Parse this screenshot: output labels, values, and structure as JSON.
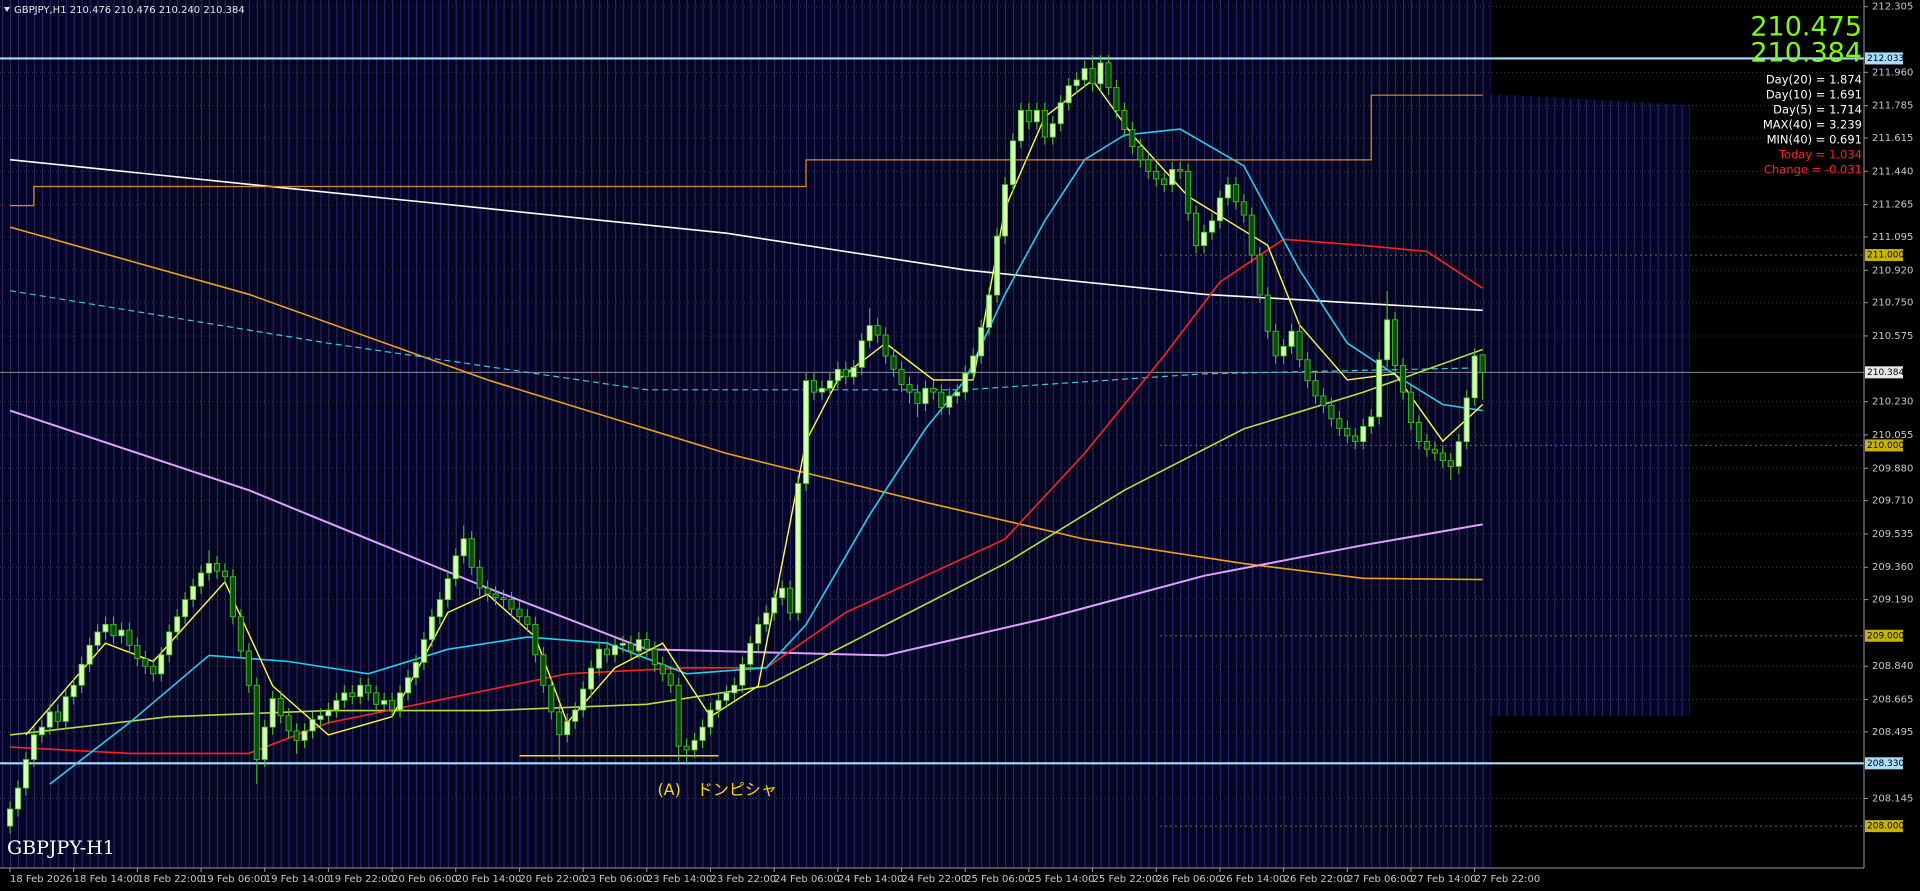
{
  "chart_data": {
    "type": "candlestick",
    "header": "GBPJPY,H1  210.476 210.476 210.240 210.384",
    "watermark": "GBPJPY-H1",
    "bid_ask": [
      210.475,
      210.384
    ],
    "bid_ask_color": "#7cfc00",
    "stats": [
      {
        "text": "Day(20) = 1.874",
        "color": "#ffffff"
      },
      {
        "text": "Day(10) = 1.691",
        "color": "#ffffff"
      },
      {
        "text": "Day(5) = 1.714",
        "color": "#ffffff"
      },
      {
        "text": "MAX(40) = 3.239",
        "color": "#ffffff"
      },
      {
        "text": "MIN(40) = 0.691",
        "color": "#ffffff"
      },
      {
        "text": "Today = 1.034",
        "color": "#ff2020"
      },
      {
        "text": "Change = -0.031",
        "color": "#ff2020"
      }
    ],
    "annotation": {
      "text": "(A)　ドンピシャ",
      "value": 208.37,
      "x": [
        64,
        89
      ],
      "color": "#ffd700"
    },
    "up_color": "#d9ffb3",
    "down_color": "#0b4d0b",
    "wick_color": "#44cc22",
    "ylim": [
      207.78,
      212.34
    ],
    "grid": true,
    "yticks": [
      212.305,
      {
        "value": 211.96,
        "label": "211.960"
      },
      211.785,
      211.615,
      {
        "value": 211.44,
        "label": "211.440"
      },
      211.265,
      211.095,
      {
        "value": 210.92,
        "label": "210.920"
      },
      {
        "value": 210.75,
        "label": "210.750"
      },
      210.575,
      {
        "value": 210.23,
        "label": "210.230"
      },
      210.055,
      {
        "value": 209.88,
        "label": "209.880"
      },
      {
        "value": 209.71,
        "label": "209.710"
      },
      209.535,
      {
        "value": 209.36,
        "label": "209.360"
      },
      {
        "value": 209.19,
        "label": "209.190"
      },
      {
        "value": 208.84,
        "label": "208.840"
      },
      208.665,
      208.495,
      208.145
    ],
    "xticks": [
      {
        "value": 0,
        "label": "18 Feb 2026"
      },
      {
        "value": 8,
        "label": "18 Feb 14:00"
      },
      {
        "value": 16,
        "label": "18 Feb 22:00"
      },
      {
        "value": 24,
        "label": "19 Feb 06:00"
      },
      {
        "value": 32,
        "label": "19 Feb 14:00"
      },
      {
        "value": 40,
        "label": "19 Feb 22:00"
      },
      {
        "value": 48,
        "label": "20 Feb 06:00"
      },
      {
        "value": 56,
        "label": "20 Feb 14:00"
      },
      {
        "value": 64,
        "label": "20 Feb 22:00"
      },
      {
        "value": 72,
        "label": "23 Feb 06:00"
      },
      {
        "value": 80,
        "label": "23 Feb 14:00"
      },
      {
        "value": 88,
        "label": "23 Feb 22:00"
      },
      {
        "value": 96,
        "label": "24 Feb 06:00"
      },
      {
        "value": 104,
        "label": "24 Feb 14:00"
      },
      {
        "value": 112,
        "label": "24 Feb 22:00"
      },
      {
        "value": 120,
        "label": "25 Feb 06:00"
      },
      {
        "value": 128,
        "label": "25 Feb 14:00"
      },
      {
        "value": 136,
        "label": "25 Feb 22:00"
      },
      {
        "value": 144,
        "label": "26 Feb 06:00"
      },
      {
        "value": 152,
        "label": "26 Feb 14:00"
      },
      {
        "value": 160,
        "label": "26 Feb 22:00"
      },
      {
        "value": 168,
        "label": "27 Feb 06:00"
      },
      {
        "value": 176,
        "label": "27 Feb 14:00"
      },
      {
        "value": 184,
        "label": "27 Feb 22:00"
      }
    ],
    "levels": [
      {
        "value": 212.033,
        "color": "#a8dcff"
      },
      {
        "value": 208.33,
        "label": "208.330",
        "color": "#a8dcff"
      }
    ],
    "round_tags": [
      {
        "value": 211,
        "label": "211.000"
      },
      {
        "value": 210,
        "label": "210.000"
      },
      {
        "value": 209,
        "label": "209.000"
      },
      {
        "value": 208,
        "label": "208.000"
      }
    ],
    "round_tag_color": "#c8b400",
    "current_price": 210.384,
    "open": [
      208.0,
      208.09,
      208.2,
      208.35,
      208.48,
      208.52,
      208.6,
      208.55,
      208.68,
      208.74,
      208.85,
      208.95,
      209.02,
      209.06,
      209.0,
      209.03,
      208.95,
      208.88,
      208.84,
      208.8,
      208.9,
      209.02,
      209.1,
      209.19,
      209.26,
      209.33,
      209.38,
      209.34,
      209.31,
      209.1,
      208.92,
      208.74,
      208.35,
      208.52,
      208.67,
      208.58,
      208.5,
      208.45,
      208.5,
      208.56,
      208.58,
      208.61,
      208.66,
      208.7,
      208.68,
      208.74,
      208.7,
      208.64,
      208.66,
      208.61,
      208.7,
      208.78,
      208.86,
      208.98,
      209.1,
      209.19,
      209.3,
      209.42,
      209.51,
      209.36,
      209.25,
      209.22,
      209.2,
      209.19,
      209.14,
      209.1,
      209.06,
      208.9,
      208.74,
      208.6,
      208.48,
      208.55,
      208.61,
      208.72,
      208.83,
      208.93,
      208.9,
      208.95,
      208.96,
      208.92,
      208.98,
      208.93,
      208.85,
      208.8,
      208.74,
      208.42,
      208.4,
      208.45,
      208.52,
      208.61,
      208.66,
      208.7,
      208.74,
      208.85,
      208.96,
      209.06,
      209.12,
      209.2,
      209.25,
      209.12,
      209.8,
      210.34,
      210.28,
      210.3,
      210.34,
      210.4,
      210.36,
      210.41,
      210.55,
      210.63,
      210.58,
      210.47,
      210.4,
      210.32,
      210.28,
      210.22,
      210.3,
      210.28,
      210.2,
      210.26,
      210.28,
      210.38,
      210.47,
      210.62,
      210.79,
      211.1,
      211.37,
      211.6,
      211.76,
      211.7,
      211.76,
      211.62,
      211.69,
      211.8,
      211.89,
      211.92,
      211.98,
      211.9,
      212.01,
      211.88,
      211.76,
      211.66,
      211.57,
      211.5,
      211.44,
      211.4,
      211.37,
      211.45,
      211.44,
      211.22,
      211.05,
      211.12,
      211.18,
      211.3,
      211.37,
      211.28,
      211.21,
      211.0,
      210.79,
      210.6,
      210.47,
      210.52,
      210.6,
      210.45,
      210.34,
      210.26,
      210.21,
      210.14,
      210.09,
      210.05,
      210.02,
      210.1,
      210.15,
      210.45,
      210.66,
      210.42,
      210.28,
      210.12,
      210.02,
      209.98,
      209.96,
      209.92,
      209.89,
      210.02,
      210.25,
      210.476
    ],
    "high": [
      208.13,
      208.24,
      208.39,
      208.52,
      208.56,
      208.64,
      208.64,
      208.72,
      208.78,
      208.89,
      208.99,
      209.06,
      209.1,
      209.1,
      209.07,
      209.07,
      208.99,
      208.92,
      208.88,
      208.94,
      209.06,
      209.14,
      209.23,
      209.3,
      209.37,
      209.45,
      209.42,
      209.38,
      209.35,
      209.14,
      208.96,
      208.78,
      208.56,
      208.71,
      208.71,
      208.62,
      208.54,
      208.54,
      208.6,
      208.62,
      208.65,
      208.7,
      208.74,
      208.74,
      208.78,
      208.78,
      208.74,
      208.7,
      208.7,
      208.74,
      208.82,
      208.9,
      209.02,
      209.14,
      209.23,
      209.34,
      209.46,
      209.58,
      209.55,
      209.4,
      209.29,
      209.26,
      209.24,
      209.23,
      209.18,
      209.14,
      209.1,
      208.94,
      208.78,
      208.64,
      208.59,
      208.65,
      208.76,
      208.87,
      208.97,
      208.97,
      208.99,
      209.0,
      209.0,
      209.02,
      209.02,
      208.97,
      208.89,
      208.84,
      208.78,
      208.46,
      208.49,
      208.56,
      208.65,
      208.7,
      208.74,
      208.78,
      208.89,
      209.0,
      209.1,
      209.16,
      209.24,
      209.29,
      209.29,
      209.84,
      210.38,
      210.38,
      210.34,
      210.38,
      210.44,
      210.44,
      210.45,
      210.59,
      210.72,
      210.67,
      210.62,
      210.51,
      210.44,
      210.36,
      210.32,
      210.34,
      210.34,
      210.32,
      210.3,
      210.32,
      210.42,
      210.51,
      210.66,
      210.83,
      211.14,
      211.41,
      211.64,
      211.8,
      211.8,
      211.8,
      211.8,
      211.73,
      211.84,
      211.93,
      211.96,
      212.02,
      212.05,
      212.05,
      212.05,
      211.92,
      211.8,
      211.7,
      211.61,
      211.54,
      211.48,
      211.44,
      211.49,
      211.49,
      211.48,
      211.26,
      211.16,
      211.22,
      211.34,
      211.41,
      211.41,
      211.32,
      211.25,
      211.04,
      210.83,
      210.64,
      210.56,
      210.64,
      210.64,
      210.49,
      210.38,
      210.3,
      210.25,
      210.18,
      210.13,
      210.09,
      210.14,
      210.19,
      210.49,
      210.81,
      210.7,
      210.46,
      210.32,
      210.16,
      210.06,
      210.02,
      210.0,
      209.96,
      210.06,
      210.29,
      210.51,
      210.476
    ],
    "low": [
      207.96,
      208.05,
      208.16,
      208.31,
      208.44,
      208.48,
      208.51,
      208.51,
      208.64,
      208.7,
      208.81,
      208.91,
      208.98,
      208.96,
      208.96,
      208.91,
      208.84,
      208.8,
      208.76,
      208.76,
      208.86,
      208.98,
      209.06,
      209.15,
      209.22,
      209.29,
      209.3,
      209.27,
      209.06,
      208.88,
      208.7,
      208.22,
      208.31,
      208.48,
      208.54,
      208.46,
      208.38,
      208.41,
      208.46,
      208.52,
      208.54,
      208.57,
      208.62,
      208.64,
      208.64,
      208.66,
      208.6,
      208.6,
      208.57,
      208.57,
      208.66,
      208.74,
      208.82,
      208.94,
      209.06,
      209.15,
      209.26,
      209.38,
      209.32,
      209.21,
      209.18,
      209.16,
      209.15,
      209.1,
      209.06,
      209.02,
      208.86,
      208.7,
      208.56,
      208.35,
      208.44,
      208.51,
      208.57,
      208.68,
      208.79,
      208.86,
      208.86,
      208.91,
      208.88,
      208.88,
      208.89,
      208.81,
      208.76,
      208.7,
      208.34,
      208.33,
      208.36,
      208.41,
      208.48,
      208.57,
      208.62,
      208.66,
      208.7,
      208.81,
      208.92,
      209.02,
      209.08,
      209.16,
      209.08,
      209.08,
      209.76,
      210.24,
      210.24,
      210.26,
      210.3,
      210.32,
      210.32,
      210.37,
      210.51,
      210.54,
      210.43,
      210.36,
      210.28,
      210.22,
      210.15,
      210.18,
      210.24,
      210.16,
      210.16,
      210.22,
      210.24,
      210.34,
      210.43,
      210.58,
      210.75,
      211.06,
      211.33,
      211.56,
      211.66,
      211.66,
      211.58,
      211.58,
      211.65,
      211.76,
      211.85,
      211.88,
      211.86,
      211.86,
      211.84,
      211.72,
      211.62,
      211.53,
      211.46,
      211.4,
      211.36,
      211.33,
      211.33,
      211.4,
      211.18,
      211.01,
      211.01,
      211.08,
      211.14,
      211.26,
      211.24,
      211.17,
      210.96,
      210.75,
      210.56,
      210.43,
      210.43,
      210.48,
      210.41,
      210.3,
      210.22,
      210.17,
      210.1,
      210.05,
      210.01,
      209.98,
      209.98,
      210.06,
      210.11,
      210.41,
      210.38,
      210.24,
      210.08,
      209.98,
      209.94,
      209.92,
      209.88,
      209.82,
      209.85,
      209.98,
      210.21,
      210.24
    ],
    "close": [
      208.09,
      208.2,
      208.35,
      208.48,
      208.52,
      208.6,
      208.55,
      208.68,
      208.74,
      208.85,
      208.95,
      209.02,
      209.06,
      209.0,
      209.03,
      208.95,
      208.88,
      208.84,
      208.8,
      208.9,
      209.02,
      209.1,
      209.19,
      209.26,
      209.33,
      209.38,
      209.34,
      209.31,
      209.1,
      208.92,
      208.74,
      208.35,
      208.52,
      208.67,
      208.58,
      208.5,
      208.45,
      208.5,
      208.56,
      208.58,
      208.61,
      208.66,
      208.7,
      208.68,
      208.74,
      208.7,
      208.64,
      208.66,
      208.61,
      208.7,
      208.78,
      208.86,
      208.98,
      209.1,
      209.19,
      209.3,
      209.42,
      209.51,
      209.36,
      209.25,
      209.22,
      209.2,
      209.19,
      209.14,
      209.1,
      209.06,
      208.9,
      208.74,
      208.6,
      208.48,
      208.55,
      208.61,
      208.72,
      208.83,
      208.93,
      208.9,
      208.95,
      208.96,
      208.92,
      208.98,
      208.93,
      208.85,
      208.8,
      208.74,
      208.42,
      208.4,
      208.45,
      208.52,
      208.61,
      208.66,
      208.7,
      208.74,
      208.85,
      208.96,
      209.06,
      209.12,
      209.2,
      209.25,
      209.12,
      209.8,
      210.34,
      210.28,
      210.3,
      210.34,
      210.4,
      210.36,
      210.41,
      210.55,
      210.63,
      210.58,
      210.47,
      210.4,
      210.32,
      210.28,
      210.22,
      210.3,
      210.28,
      210.2,
      210.26,
      210.28,
      210.38,
      210.47,
      210.62,
      210.79,
      211.1,
      211.37,
      211.6,
      211.76,
      211.7,
      211.76,
      211.62,
      211.69,
      211.8,
      211.89,
      211.92,
      211.98,
      211.9,
      212.01,
      211.88,
      211.76,
      211.66,
      211.57,
      211.5,
      211.44,
      211.4,
      211.37,
      211.45,
      211.44,
      211.22,
      211.05,
      211.12,
      211.18,
      211.3,
      211.37,
      211.28,
      211.21,
      211.0,
      210.79,
      210.6,
      210.47,
      210.52,
      210.6,
      210.45,
      210.34,
      210.26,
      210.21,
      210.14,
      210.09,
      210.05,
      210.02,
      210.1,
      210.15,
      210.45,
      210.66,
      210.42,
      210.28,
      210.12,
      210.02,
      209.98,
      209.96,
      209.92,
      209.89,
      210.02,
      210.25,
      210.47,
      210.384
    ],
    "lines": [
      {
        "color": "#ffffff",
        "width": 1.6,
        "x": [
          0,
          30,
          60,
          90,
          120,
          150,
          185
        ],
        "values": [
          211.501,
          211.372,
          211.244,
          211.115,
          210.922,
          210.794,
          210.71
        ]
      },
      {
        "color": "#f0a020",
        "width": 1.6,
        "x": [
          0,
          30,
          60,
          90,
          115,
          135,
          155,
          170,
          185
        ],
        "values": [
          211.147,
          210.794,
          210.344,
          209.958,
          209.701,
          209.508,
          209.379,
          209.302,
          209.295
        ]
      },
      {
        "color": "#e0a0ff",
        "width": 2,
        "x": [
          0,
          30,
          60,
          80,
          110,
          130,
          150,
          170,
          185
        ],
        "values": [
          210.183,
          209.765,
          209.251,
          208.929,
          208.897,
          209.09,
          209.315,
          209.476,
          209.585
        ]
      },
      {
        "color": "#3fc8d8",
        "width": 1.2,
        "dashed": true,
        "x": [
          0,
          40,
          80,
          120,
          150,
          185
        ],
        "values": [
          210.813,
          210.537,
          210.292,
          210.292,
          210.376,
          210.408
        ]
      },
      {
        "color": "#b4e03c",
        "width": 1.6,
        "x": [
          0,
          20,
          40,
          60,
          80,
          95,
          110,
          125,
          140,
          155,
          170,
          185
        ],
        "values": [
          208.479,
          208.575,
          208.607,
          208.607,
          208.64,
          208.736,
          209.058,
          209.379,
          209.765,
          210.087,
          210.279,
          210.504
        ]
      },
      {
        "color": "#ff2020",
        "width": 1.6,
        "x": [
          0,
          15,
          30,
          40,
          55,
          70,
          85,
          95,
          105,
          115,
          125,
          135,
          145,
          152,
          160,
          170,
          178,
          185
        ],
        "values": [
          208.415,
          208.382,
          208.382,
          208.543,
          208.672,
          208.8,
          208.832,
          208.832,
          209.122,
          209.315,
          209.508,
          209.958,
          210.472,
          210.858,
          211.083,
          211.051,
          211.019,
          210.826
        ]
      },
      {
        "color": "#20d0f0",
        "width": 1.6,
        "x": [
          5,
          15,
          25,
          35,
          45,
          55,
          65,
          75,
          85,
          95,
          100,
          108,
          115,
          120,
          125,
          130,
          135,
          140,
          147,
          155,
          162,
          168,
          175,
          180,
          185
        ],
        "values": [
          208.221,
          208.543,
          208.897,
          208.865,
          208.8,
          208.929,
          208.993,
          208.961,
          208.8,
          208.832,
          209.058,
          209.636,
          210.087,
          210.344,
          210.794,
          211.18,
          211.501,
          211.63,
          211.662,
          211.469,
          210.922,
          210.537,
          210.344,
          210.215,
          210.183
        ]
      },
      {
        "color": "#ffff30",
        "width": 1.4,
        "x": [
          2,
          12,
          18,
          27,
          33,
          40,
          48,
          55,
          60,
          66,
          70,
          76,
          82,
          88,
          94,
          100,
          104,
          110,
          116,
          121,
          125,
          130,
          136,
          141,
          148,
          153,
          158,
          162,
          168,
          174,
          180,
          185
        ],
        "values": [
          208.479,
          208.961,
          208.865,
          209.283,
          208.736,
          208.479,
          208.575,
          209.122,
          209.218,
          208.993,
          208.543,
          208.832,
          208.961,
          208.575,
          208.736,
          210.022,
          210.344,
          210.537,
          210.344,
          210.344,
          211.244,
          211.726,
          211.919,
          211.63,
          211.308,
          211.18,
          211.051,
          210.633,
          210.344,
          210.376,
          210.022,
          210.215
        ]
      },
      {
        "color": "#e08a30",
        "width": 1.2,
        "x": [
          0,
          3,
          3,
          100,
          100,
          171,
          171,
          185
        ],
        "values": [
          211.26,
          211.26,
          211.36,
          211.36,
          211.5,
          211.5,
          211.84,
          211.84
        ]
      }
    ]
  }
}
